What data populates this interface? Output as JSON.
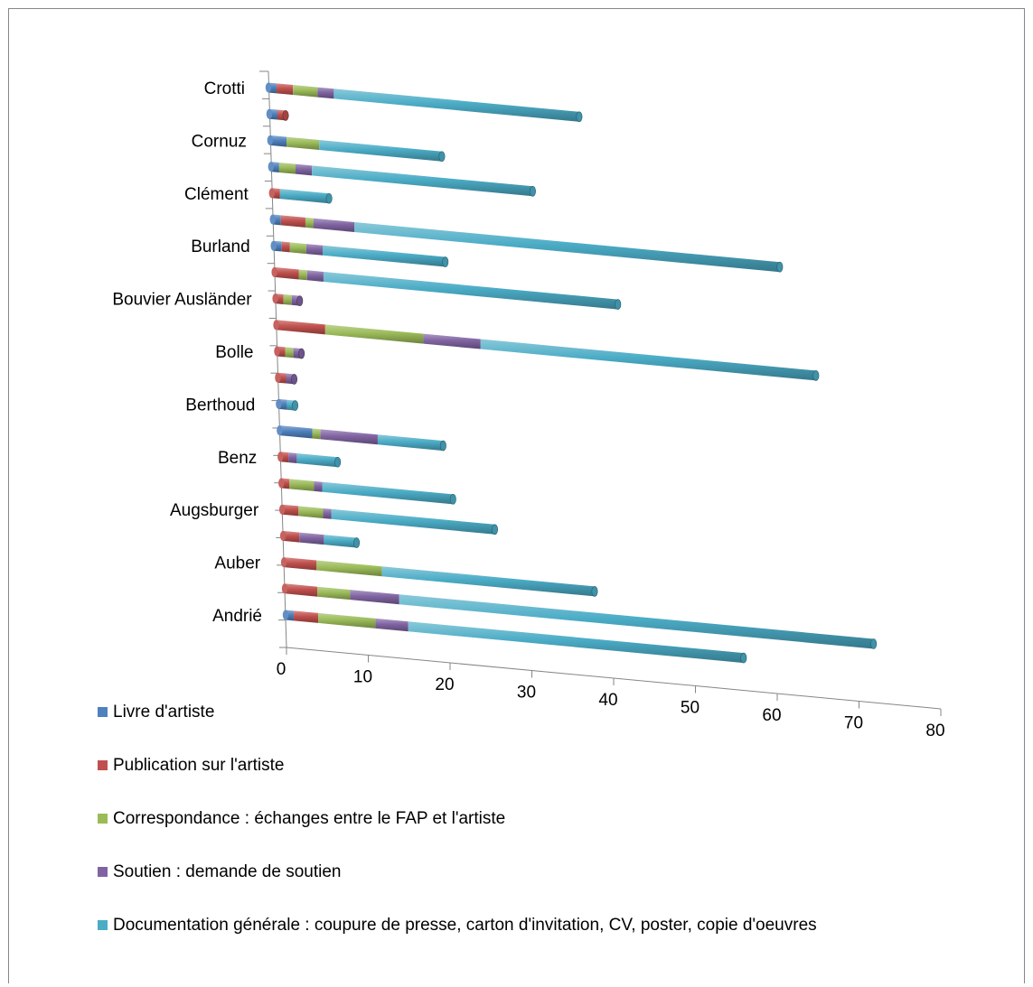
{
  "chart_data": {
    "type": "bar",
    "orientation": "horizontal",
    "stacked": true,
    "style": "3d-cylinder",
    "categories": [
      "Andrié",
      "",
      "Auber",
      "",
      "Augsburger",
      "",
      "Benz",
      "",
      "Berthoud",
      "",
      "Bolle",
      "",
      "Bouvier Ausländer",
      "",
      "Burland",
      "",
      "Clément",
      "",
      "Cornuz",
      "",
      "Crotti"
    ],
    "series": [
      {
        "name": "Livre d'artiste",
        "color": "#4F81BD",
        "values": [
          1,
          0,
          0,
          0,
          0,
          0,
          0,
          4,
          1,
          0,
          0,
          0,
          0,
          0,
          1,
          1,
          0,
          1,
          2,
          1,
          1
        ]
      },
      {
        "name": "Publication sur l'artiste",
        "color": "#C0504D",
        "values": [
          3,
          4,
          4,
          2,
          2,
          1,
          1,
          0,
          0,
          1,
          1,
          6,
          1,
          3,
          1,
          3,
          1,
          0,
          0,
          1,
          2
        ]
      },
      {
        "name": "Correspondance : échanges entre le FAP et l'artiste",
        "color": "#9BBB59",
        "values": [
          7,
          4,
          8,
          0,
          3,
          3,
          0,
          1,
          0,
          0,
          1,
          12,
          1,
          1,
          2,
          1,
          0,
          2,
          4,
          0,
          3
        ]
      },
      {
        "name": "Soutien : demande de soutien",
        "color": "#8064A2",
        "values": [
          4,
          6,
          0,
          3,
          1,
          1,
          1,
          7,
          0,
          1,
          1,
          7,
          1,
          2,
          2,
          5,
          0,
          2,
          0,
          0,
          2
        ]
      },
      {
        "name": "Documentation générale : coupure de presse, carton d'invitation, CV, poster, copie d'oeuvres",
        "color": "#4BACC6",
        "values": [
          41,
          58,
          26,
          4,
          20,
          16,
          5,
          8,
          1,
          0,
          0,
          41,
          0,
          36,
          15,
          52,
          6,
          27,
          15,
          0,
          30
        ]
      }
    ],
    "xlim": [
      0,
      80
    ],
    "x_ticks": [
      "0",
      "10",
      "20",
      "30",
      "40",
      "50",
      "60",
      "70",
      "80"
    ],
    "legend_position": "bottom"
  }
}
